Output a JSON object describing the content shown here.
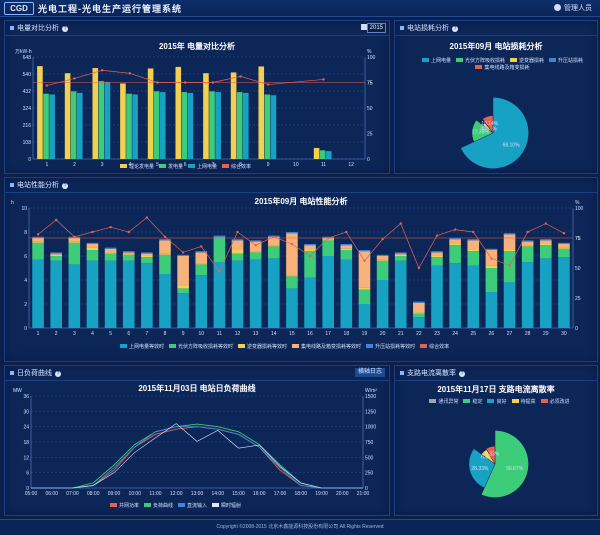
{
  "app": {
    "logo": "CGD",
    "title": "光电工程-光电生产运行管理系统",
    "user": "管理人员"
  },
  "panel1": {
    "title": "电量对比分析",
    "year": "2015",
    "chart_title": "2015年 电量对比分析"
  },
  "panel2": {
    "title": "电站损耗分析",
    "chart_title": "2015年09月 电站损耗分析"
  },
  "panel3": {
    "title": "电站性能分析",
    "chart_title": "2015年09月 电站性能分析"
  },
  "panel4": {
    "title": "日负荷曲线",
    "button": "横轴日志",
    "chart_title": "2015年11月03日 电站日负荷曲线"
  },
  "panel5": {
    "title": "支路电流离散率",
    "chart_title": "2015年11月17日 支路电流离散率"
  },
  "footer": "Copyright ©2008-2015 北京木鑫能源科技股份有限公司 All Rights Reserved",
  "colors": {
    "yellow": "#f2d14e",
    "green": "#3ccc7a",
    "teal": "#17a2c4",
    "red": "#e8614e",
    "orange": "#f7b27b"
  },
  "chart_data": [
    {
      "type": "bar",
      "title": "2015年 电量对比分析",
      "ylabel_left": "万kW·h",
      "ylabel_right": "%",
      "ylim": [
        0,
        648
      ],
      "y2lim": [
        0,
        100
      ],
      "yticks": [
        0,
        108,
        216,
        324,
        432,
        540,
        648
      ],
      "y2ticks": [
        0,
        25,
        50,
        75,
        100
      ],
      "categories": [
        "1",
        "2",
        "3",
        "4",
        "5",
        "6",
        "7",
        "8",
        "9",
        "10",
        "11",
        "12"
      ],
      "series": [
        {
          "name": "理论发电量",
          "color": "#f2d14e",
          "values": [
            590,
            545,
            578,
            480,
            575,
            585,
            545,
            550,
            588,
            0,
            70,
            0
          ]
        },
        {
          "name": "发电量",
          "color": "#3ccc7a",
          "values": [
            415,
            430,
            495,
            415,
            430,
            425,
            430,
            425,
            410,
            0,
            55,
            0
          ]
        },
        {
          "name": "上网电量",
          "color": "#17a2c4",
          "values": [
            410,
            420,
            490,
            410,
            425,
            420,
            425,
            420,
            405,
            0,
            50,
            0
          ]
        },
        {
          "name": "综合效率",
          "color": "#e8614e",
          "type": "line",
          "values": [
            72,
            79,
            87,
            84,
            75,
            75,
            75,
            81,
            73,
            null,
            78,
            null
          ]
        }
      ],
      "ref_line": 75
    },
    {
      "type": "pie",
      "title": "2015年09月 电站损耗分析",
      "legend": [
        "上网电量",
        "光伏方阵吸收损耗",
        "逆变器损耗",
        "升压站损耗",
        "集电线路及箱变损耗"
      ],
      "slices": [
        {
          "name": "上网电量",
          "value": 68.1,
          "label": "68.10%",
          "color": "#17a2c4"
        },
        {
          "name": "光伏方阵吸收损耗",
          "value": 17.36,
          "label": "17.36%",
          "color": "#3ccc7a"
        },
        {
          "name": "逆变器损耗",
          "value": 3.57,
          "label": "3.57%",
          "color": "#f2d14e"
        },
        {
          "name": "升压站损耗",
          "value": 0.83,
          "label": "0.83%",
          "color": "#3f86d9"
        },
        {
          "name": "集电线路及箱变损耗",
          "value": 10.14,
          "label": "10.14%",
          "color": "#e8614e"
        }
      ]
    },
    {
      "type": "bar",
      "title": "2015年09月 电站性能分析",
      "ylabel_left": "h",
      "ylabel_right": "%",
      "ylim": [
        0,
        10
      ],
      "y2lim": [
        0,
        100
      ],
      "yticks": [
        0,
        2,
        4,
        6,
        8,
        10
      ],
      "y2ticks": [
        0,
        25,
        50,
        75,
        100
      ],
      "categories": [
        "1",
        "2",
        "3",
        "4",
        "5",
        "6",
        "7",
        "8",
        "9",
        "10",
        "11",
        "12",
        "13",
        "14",
        "15",
        "16",
        "17",
        "18",
        "19",
        "20",
        "21",
        "22",
        "23",
        "24",
        "25",
        "26",
        "27",
        "28",
        "29",
        "30"
      ],
      "legend": [
        "上网电量等效时",
        "光伏方阵吸收损耗等效时",
        "逆变器损耗等效时",
        "集电线路及箱变损耗等效时",
        "升压站损耗等效时",
        "综合效率"
      ],
      "series": [
        {
          "name": "上网电量等效时",
          "color": "#17a2c4",
          "values": [
            5.7,
            5.6,
            5.3,
            5.6,
            5.6,
            5.6,
            5.4,
            4.5,
            2.9,
            4.4,
            5.5,
            5.6,
            5.7,
            5.8,
            3.3,
            4.2,
            6.0,
            5.7,
            2.0,
            4.0,
            5.6,
            0.9,
            5.2,
            5.4,
            5.2,
            3.0,
            3.8,
            5.5,
            5.8,
            5.9
          ]
        },
        {
          "name": "光伏方阵吸收损耗等效时",
          "color": "#3ccc7a",
          "values": [
            1.4,
            0.4,
            1.8,
            0.9,
            0.6,
            0.5,
            0.5,
            1.6,
            0.4,
            0.9,
            2.1,
            0.6,
            0.6,
            1.0,
            1.0,
            2.2,
            1.3,
            0.8,
            1.2,
            1.6,
            0.4,
            0.3,
            0.7,
            1.5,
            1.2,
            2.0,
            2.6,
            1.3,
            1.1,
            0.7
          ]
        },
        {
          "name": "逆变器损耗等效时",
          "color": "#f2d14e",
          "values": [
            0.1,
            0.1,
            0.1,
            0.2,
            0.1,
            0.1,
            0.1,
            0.1,
            0.2,
            0.1,
            0.0,
            0.3,
            0.1,
            0.1,
            0.1,
            0.1,
            0.1,
            0.1,
            0.2,
            0.1,
            0.1,
            0.1,
            0.1,
            0.1,
            0.1,
            0.2,
            0.1,
            0.1,
            0.1,
            0.1
          ]
        },
        {
          "name": "集电线路及箱变损耗等效时",
          "color": "#f7b27b",
          "values": [
            0.3,
            0.1,
            0.3,
            0.3,
            0.3,
            0.1,
            0.2,
            1.1,
            2.5,
            0.9,
            0.0,
            0.8,
            0.8,
            0.7,
            3.5,
            0.4,
            0.1,
            0.3,
            3.0,
            0.3,
            0.1,
            0.8,
            0.3,
            0.4,
            0.8,
            1.3,
            1.3,
            0.3,
            0.3,
            0.3
          ]
        },
        {
          "name": "升压站损耗等效时",
          "color": "#3f86d9",
          "values": [
            0.1,
            0.1,
            0.1,
            0.1,
            0.1,
            0.1,
            0.1,
            0.1,
            0.1,
            0.1,
            0.1,
            0.1,
            0.1,
            0.1,
            0.1,
            0.1,
            0.1,
            0.1,
            0.1,
            0.1,
            0.1,
            0.1,
            0.1,
            0.1,
            0.1,
            0.1,
            0.1,
            0.1,
            0.1,
            0.1
          ]
        },
        {
          "name": "综合效率",
          "color": "#e8614e",
          "type": "line",
          "values": [
            78,
            90,
            76,
            80,
            84,
            80,
            92,
            76,
            63,
            68,
            47,
            80,
            69,
            76,
            70,
            60,
            75,
            80,
            56,
            74,
            87,
            50,
            77,
            82,
            80,
            58,
            52,
            80,
            87,
            79
          ]
        }
      ],
      "ref_line": 75
    },
    {
      "type": "line",
      "title": "2015年11月03日 电站日负荷曲线",
      "ylabel_left": "MW",
      "ylabel_right": "W/m²",
      "ylim": [
        0,
        36
      ],
      "y2lim": [
        0,
        1500
      ],
      "yticks": [
        0,
        6,
        12,
        18,
        24,
        30,
        36
      ],
      "y2ticks": [
        0,
        250,
        500,
        750,
        1000,
        1250,
        1500
      ],
      "x": [
        "05:00",
        "06:00",
        "07:00",
        "08:00",
        "09:00",
        "10:00",
        "11:00",
        "12:00",
        "13:00",
        "14:00",
        "15:00",
        "16:00",
        "17:00",
        "18:00",
        "19:00",
        "20:00",
        "21:00"
      ],
      "series": [
        {
          "name": "并网功率",
          "color": "#e8614e",
          "values": [
            0,
            0,
            0,
            1,
            7,
            16,
            21,
            23,
            24,
            23,
            21,
            16,
            7,
            1,
            0,
            0,
            0
          ]
        },
        {
          "name": "负荷曲线",
          "color": "#3ccc7a",
          "values": [
            0,
            0,
            0,
            2,
            9,
            17,
            22,
            24,
            25,
            24,
            22,
            17,
            9,
            2,
            0,
            0,
            0
          ]
        },
        {
          "name": "直流输入",
          "color": "#3f86d9",
          "values": [
            0,
            0,
            0,
            1,
            8,
            16,
            22,
            24,
            24,
            23,
            21,
            16,
            8,
            1,
            0,
            0,
            0
          ]
        },
        {
          "name": "瞬时辐射",
          "color": "#dfe9ff",
          "axis": "right",
          "values": [
            0,
            0,
            0,
            40,
            250,
            580,
            820,
            1050,
            760,
            940,
            650,
            700,
            350,
            80,
            0,
            0,
            0
          ]
        }
      ]
    },
    {
      "type": "pie",
      "title": "2015年11月17日 支路电流离散率",
      "legend": [
        "通讯异常(0%)",
        "稳定(0-5%)",
        "良好(5-10%)",
        "待提高(10-20%)",
        "必须改进(20%以上)"
      ],
      "slices": [
        {
          "name": "通讯异常",
          "value": 0.0,
          "label": "0.00%",
          "color": "#9aa6b8"
        },
        {
          "name": "稳定",
          "value": 56.67,
          "label": "56.67%",
          "color": "#3ccc7a"
        },
        {
          "name": "良好",
          "value": 28.33,
          "label": "28.33%",
          "color": "#17a2c4"
        },
        {
          "name": "待提高",
          "value": 6.67,
          "label": "6.67%",
          "color": "#f2d14e"
        },
        {
          "name": "必须改进",
          "value": 8.33,
          "label": "8.33%",
          "color": "#e8614e"
        }
      ]
    }
  ]
}
